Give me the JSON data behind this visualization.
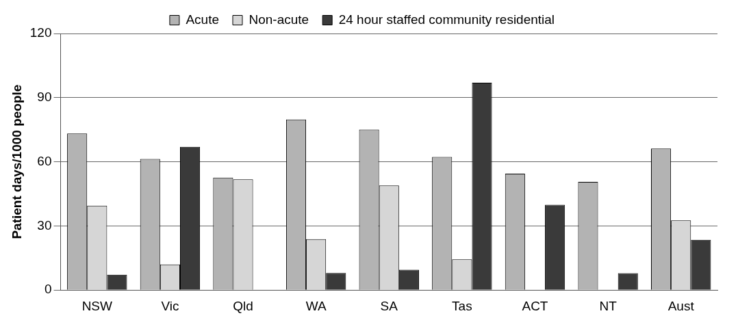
{
  "chart_data": {
    "type": "bar",
    "ylabel": "Patient days/1000 people",
    "categories": [
      "NSW",
      "Vic",
      "Qld",
      "WA",
      "SA",
      "Tas",
      "ACT",
      "NT",
      "Aust"
    ],
    "series": [
      {
        "name": "Acute",
        "color": "#b3b3b3",
        "values": [
          73.2,
          61.3,
          52.6,
          79.8,
          75.1,
          62.3,
          54.4,
          50.6,
          66.2
        ]
      },
      {
        "name": "Non-acute",
        "color": "#d6d6d6",
        "values": [
          39.5,
          12,
          51.8,
          23.8,
          48.9,
          14.4,
          null,
          null,
          32.6
        ]
      },
      {
        "name": "24 hour staffed community residential",
        "color": "#3a3a3a",
        "values": [
          7.2,
          67,
          null,
          8,
          9.5,
          97,
          39.9,
          7.9,
          23.5
        ]
      }
    ],
    "ylim": [
      0,
      120
    ],
    "yticks": [
      0,
      30,
      60,
      90,
      120
    ],
    "grid": "y",
    "legend": "top"
  }
}
